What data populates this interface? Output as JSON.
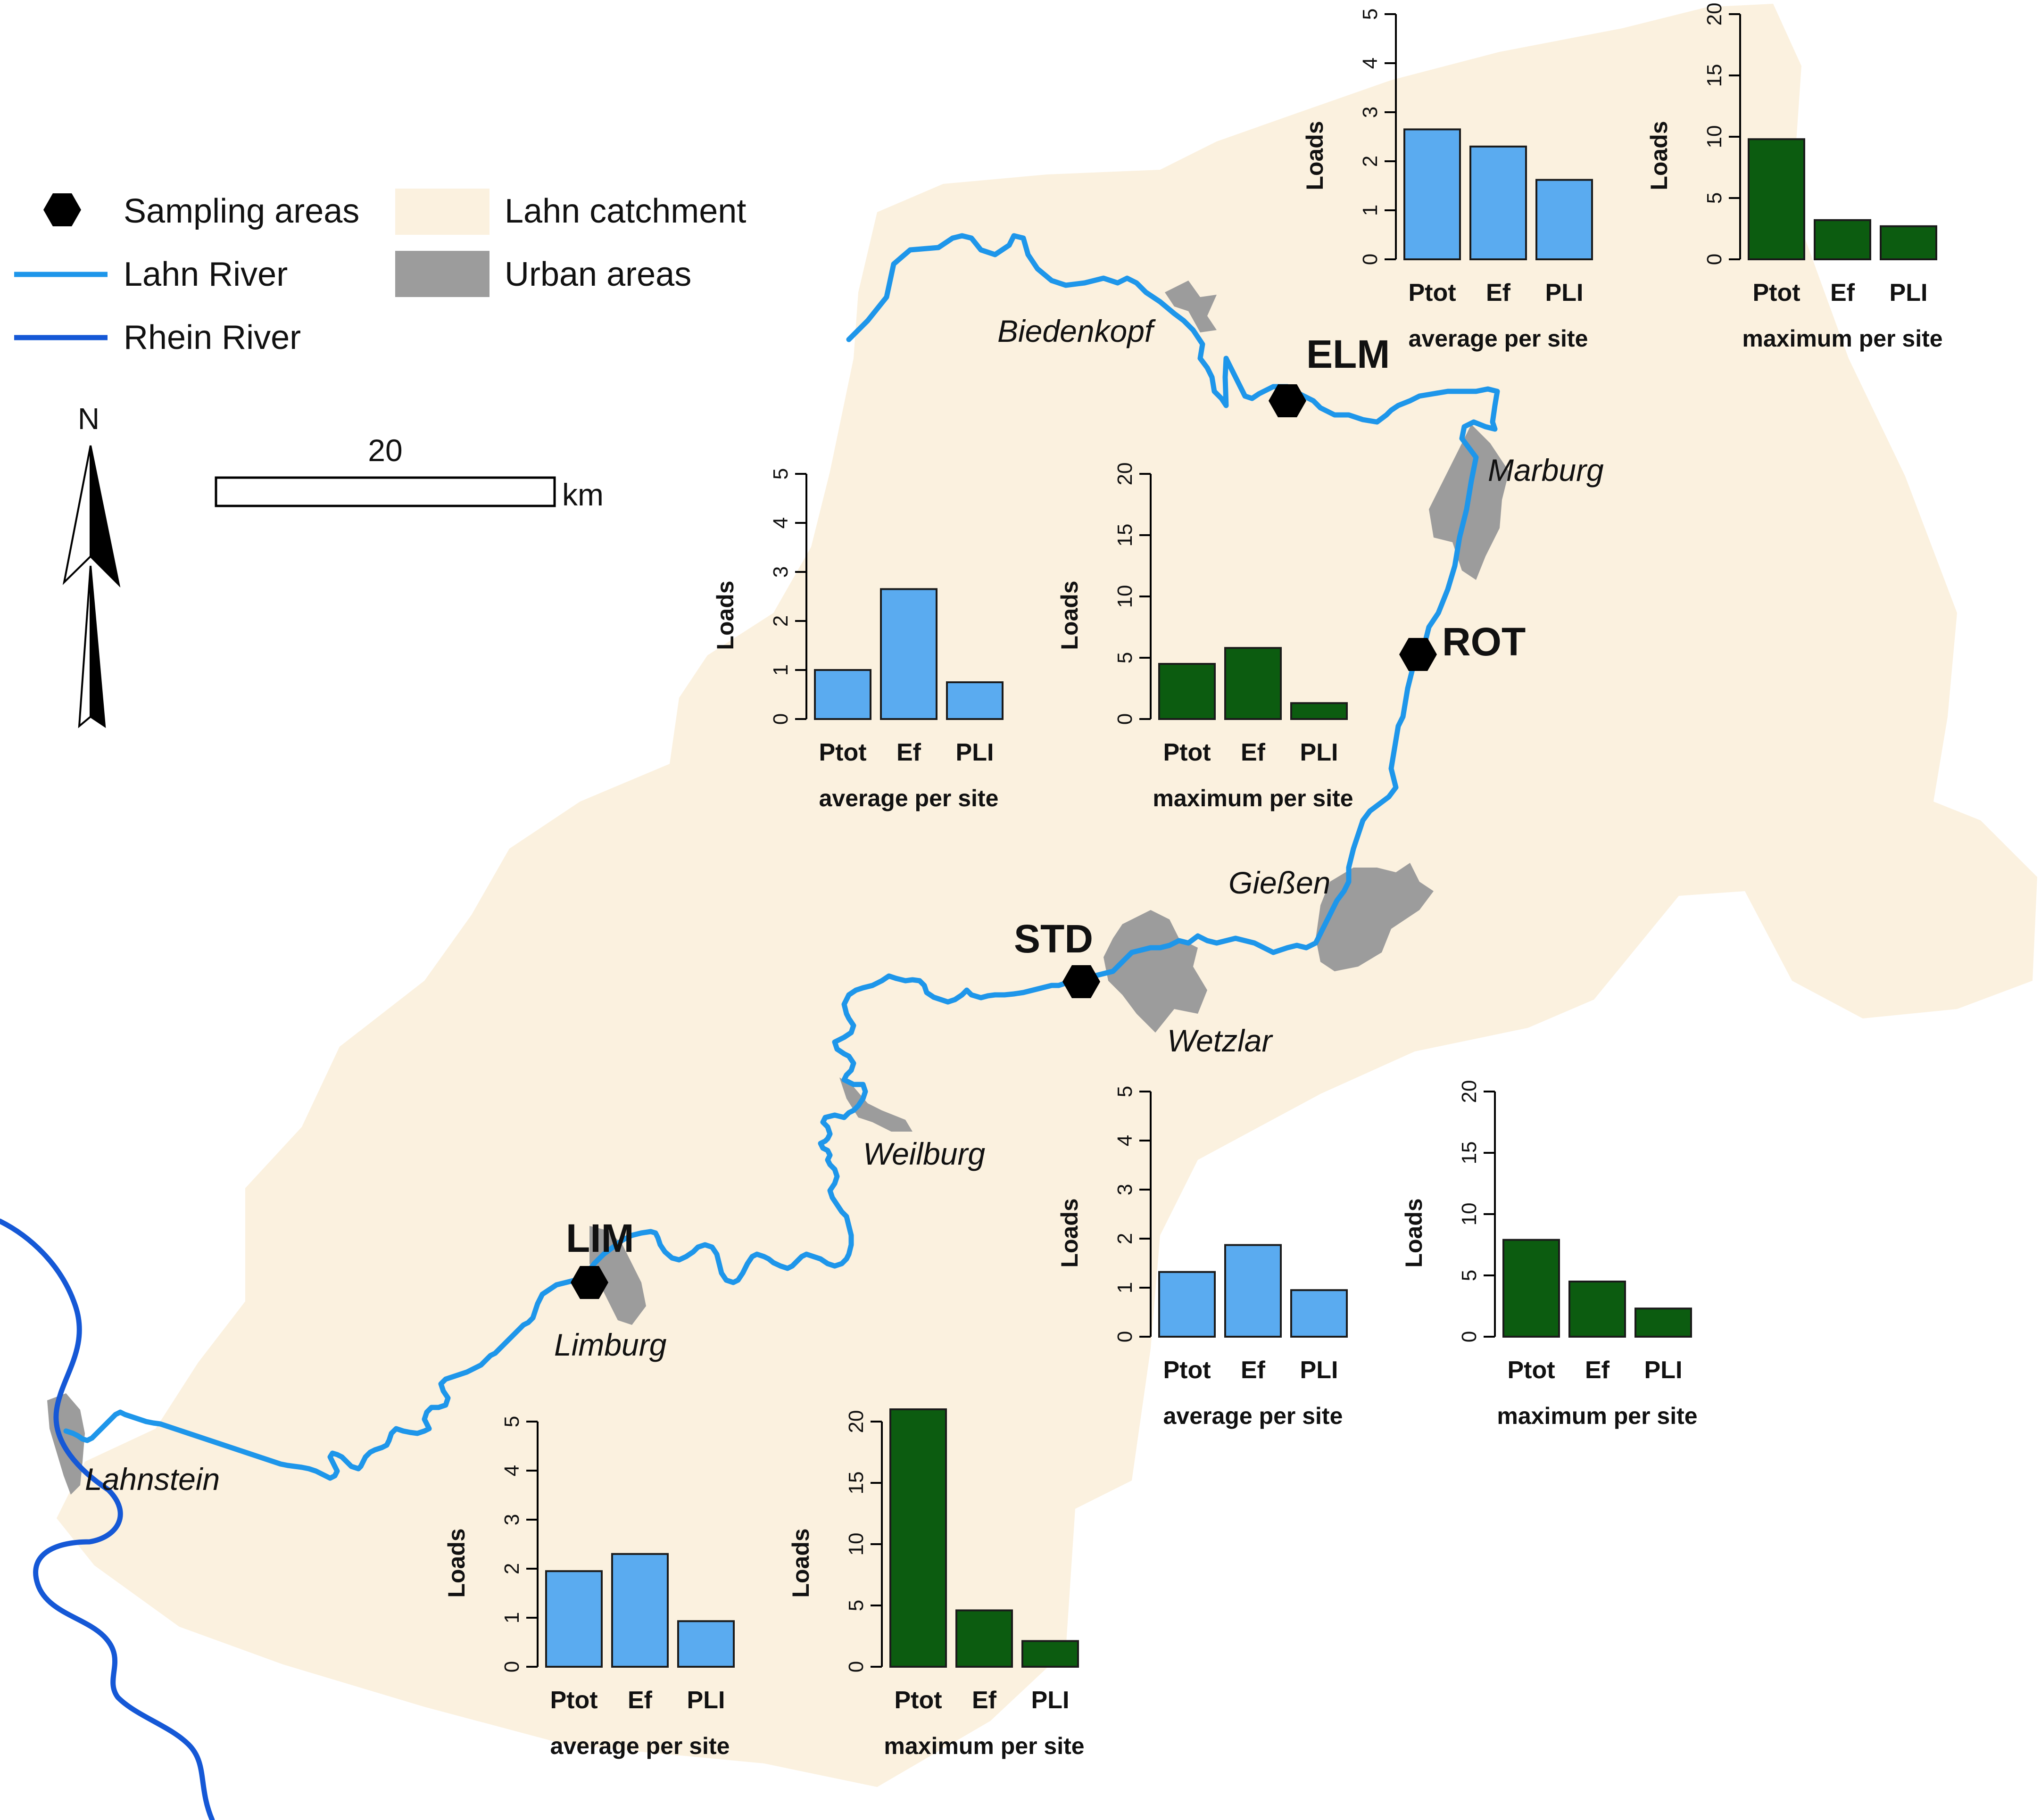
{
  "legend": {
    "sampling_areas": "Sampling areas",
    "lahn_river": "Lahn River",
    "rhein_river": "Rhein River",
    "lahn_catchment": "Lahn catchment",
    "urban_areas": "Urban areas"
  },
  "north_label": "N",
  "scale_bar": {
    "value": "20",
    "unit": "km"
  },
  "colors": {
    "catchment": "#fbf1df",
    "urban": "#9c9c9c",
    "lahn_river": "#1e96ea",
    "rhein_river": "#1558d6",
    "site_marker": "#000000",
    "average_bars": "#5aabf0",
    "maximum_bars": "#0c5c10"
  },
  "sites": [
    {
      "code": "ELM"
    },
    {
      "code": "ROT"
    },
    {
      "code": "STD"
    },
    {
      "code": "LIM"
    }
  ],
  "towns": [
    "Biedenkopf",
    "Marburg",
    "Gießen",
    "Wetzlar",
    "Weilburg",
    "Limburg",
    "Lahnstein"
  ],
  "chart_data": [
    {
      "type": "bar",
      "site": "ELM",
      "title": "",
      "xlabel": "average per site",
      "ylabel": "Loads",
      "categories": [
        "Ptot",
        "Ef",
        "PLI"
      ],
      "values": [
        2.65,
        2.3,
        1.62
      ],
      "ylim": [
        0,
        5
      ],
      "yticks": [
        "0",
        "1",
        "2",
        "3",
        "4",
        "5"
      ],
      "color": "#5aabf0"
    },
    {
      "type": "bar",
      "site": "ELM",
      "title": "",
      "xlabel": "maximum per site",
      "ylabel": "Loads",
      "categories": [
        "Ptot",
        "Ef",
        "PLI"
      ],
      "values": [
        9.8,
        3.2,
        2.7
      ],
      "ylim": [
        0,
        20
      ],
      "yticks": [
        "0",
        "5",
        "10",
        "15",
        "20"
      ],
      "color": "#0c5c10"
    },
    {
      "type": "bar",
      "site": "ROT",
      "title": "",
      "xlabel": "average per site",
      "ylabel": "Loads",
      "categories": [
        "Ptot",
        "Ef",
        "PLI"
      ],
      "values": [
        1.0,
        2.65,
        0.75
      ],
      "ylim": [
        0,
        5
      ],
      "yticks": [
        "0",
        "1",
        "2",
        "3",
        "4",
        "5"
      ],
      "color": "#5aabf0"
    },
    {
      "type": "bar",
      "site": "ROT",
      "title": "",
      "xlabel": "maximum per site",
      "ylabel": "Loads",
      "categories": [
        "Ptot",
        "Ef",
        "PLI"
      ],
      "values": [
        4.5,
        5.8,
        1.3
      ],
      "ylim": [
        0,
        20
      ],
      "yticks": [
        "0",
        "5",
        "10",
        "15",
        "20"
      ],
      "color": "#0c5c10"
    },
    {
      "type": "bar",
      "site": "STD",
      "title": "",
      "xlabel": "average per site",
      "ylabel": "Loads",
      "categories": [
        "Ptot",
        "Ef",
        "PLI"
      ],
      "values": [
        1.32,
        1.87,
        0.95
      ],
      "ylim": [
        0,
        5
      ],
      "yticks": [
        "0",
        "1",
        "2",
        "3",
        "4",
        "5"
      ],
      "color": "#5aabf0"
    },
    {
      "type": "bar",
      "site": "STD",
      "title": "",
      "xlabel": "maximum per site",
      "ylabel": "Loads",
      "categories": [
        "Ptot",
        "Ef",
        "PLI"
      ],
      "values": [
        7.9,
        4.5,
        2.3
      ],
      "ylim": [
        0,
        20
      ],
      "yticks": [
        "0",
        "5",
        "10",
        "15",
        "20"
      ],
      "color": "#0c5c10"
    },
    {
      "type": "bar",
      "site": "LIM",
      "title": "",
      "xlabel": "average per site",
      "ylabel": "Loads",
      "categories": [
        "Ptot",
        "Ef",
        "PLI"
      ],
      "values": [
        1.95,
        2.3,
        0.93
      ],
      "ylim": [
        0,
        5
      ],
      "yticks": [
        "0",
        "1",
        "2",
        "3",
        "4",
        "5"
      ],
      "color": "#5aabf0"
    },
    {
      "type": "bar",
      "site": "LIM",
      "title": "",
      "xlabel": "maximum per site",
      "ylabel": "Loads",
      "categories": [
        "Ptot",
        "Ef",
        "PLI"
      ],
      "values": [
        21.0,
        4.6,
        2.1
      ],
      "ylim": [
        0,
        20
      ],
      "yticks": [
        "0",
        "5",
        "10",
        "15",
        "20"
      ],
      "color": "#0c5c10"
    }
  ]
}
